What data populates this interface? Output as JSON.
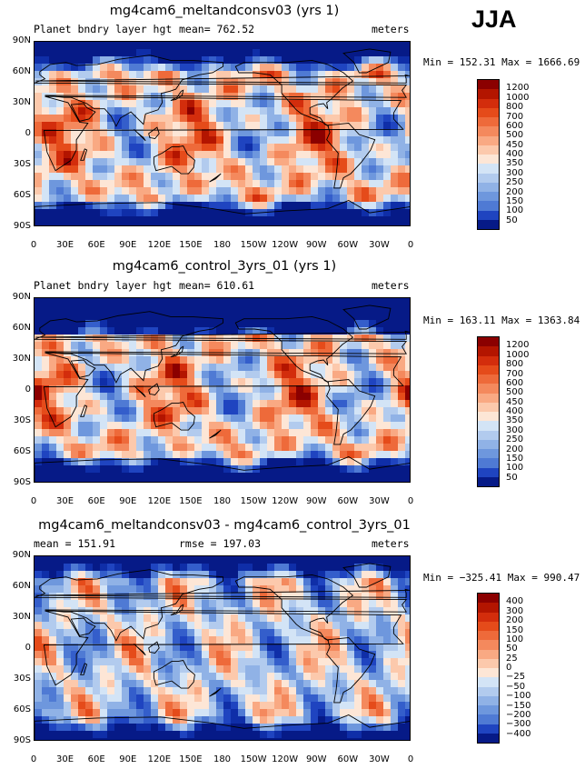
{
  "season": "JJA",
  "palette": {
    "reds": [
      "#8b0000",
      "#b31500",
      "#d32d0c",
      "#e54b1a",
      "#ee6a3a",
      "#f4895d",
      "#f9a983",
      "#fcc9ac",
      "#fde6d6"
    ],
    "blues": [
      "#d3e4f6",
      "#b2cbee",
      "#90b2e6",
      "#6e97dd",
      "#4f7ad4",
      "#345ecb",
      "#1f44c0",
      "#0f2ea8",
      "#061a87"
    ]
  },
  "x_ticks": [
    "0",
    "30E",
    "60E",
    "90E",
    "120E",
    "150E",
    "180",
    "150W",
    "120W",
    "90W",
    "60W",
    "30W",
    "0"
  ],
  "y_ticks": [
    "90N",
    "60N",
    "30N",
    "0",
    "30S",
    "60S",
    "90S"
  ],
  "panels": [
    {
      "title": "mg4cam6_meltandconsv03 (yrs 1)",
      "left_text": "Planet bndry layer hgt",
      "center_text": "mean= 762.52",
      "units": "meters",
      "minmax": "Min = 152.31 Max = 1666.69",
      "colorbar_labels": [
        "1200",
        "1000",
        "800",
        "700",
        "600",
        "500",
        "450",
        "400",
        "350",
        "300",
        "250",
        "200",
        "150",
        "100",
        "50"
      ]
    },
    {
      "title": "mg4cam6_control_3yrs_01 (yrs 1)",
      "left_text": "Planet bndry layer hgt",
      "center_text": "mean= 610.61",
      "units": "meters",
      "minmax": "Min = 163.11 Max = 1363.84",
      "colorbar_labels": [
        "1200",
        "1000",
        "800",
        "700",
        "600",
        "500",
        "450",
        "400",
        "350",
        "300",
        "250",
        "200",
        "150",
        "100",
        "50"
      ]
    },
    {
      "title": "mg4cam6_meltandconsv03 - mg4cam6_control_3yrs_01",
      "left_text": "mean = 151.91",
      "center_text": "rmse = 197.03",
      "units": "meters",
      "minmax": "Min = −325.41 Max = 990.47",
      "colorbar_labels": [
        "400",
        "300",
        "200",
        "150",
        "100",
        "50",
        "25",
        "0",
        "−25",
        "−50",
        "−100",
        "−150",
        "−200",
        "−300",
        "−400"
      ]
    }
  ]
}
